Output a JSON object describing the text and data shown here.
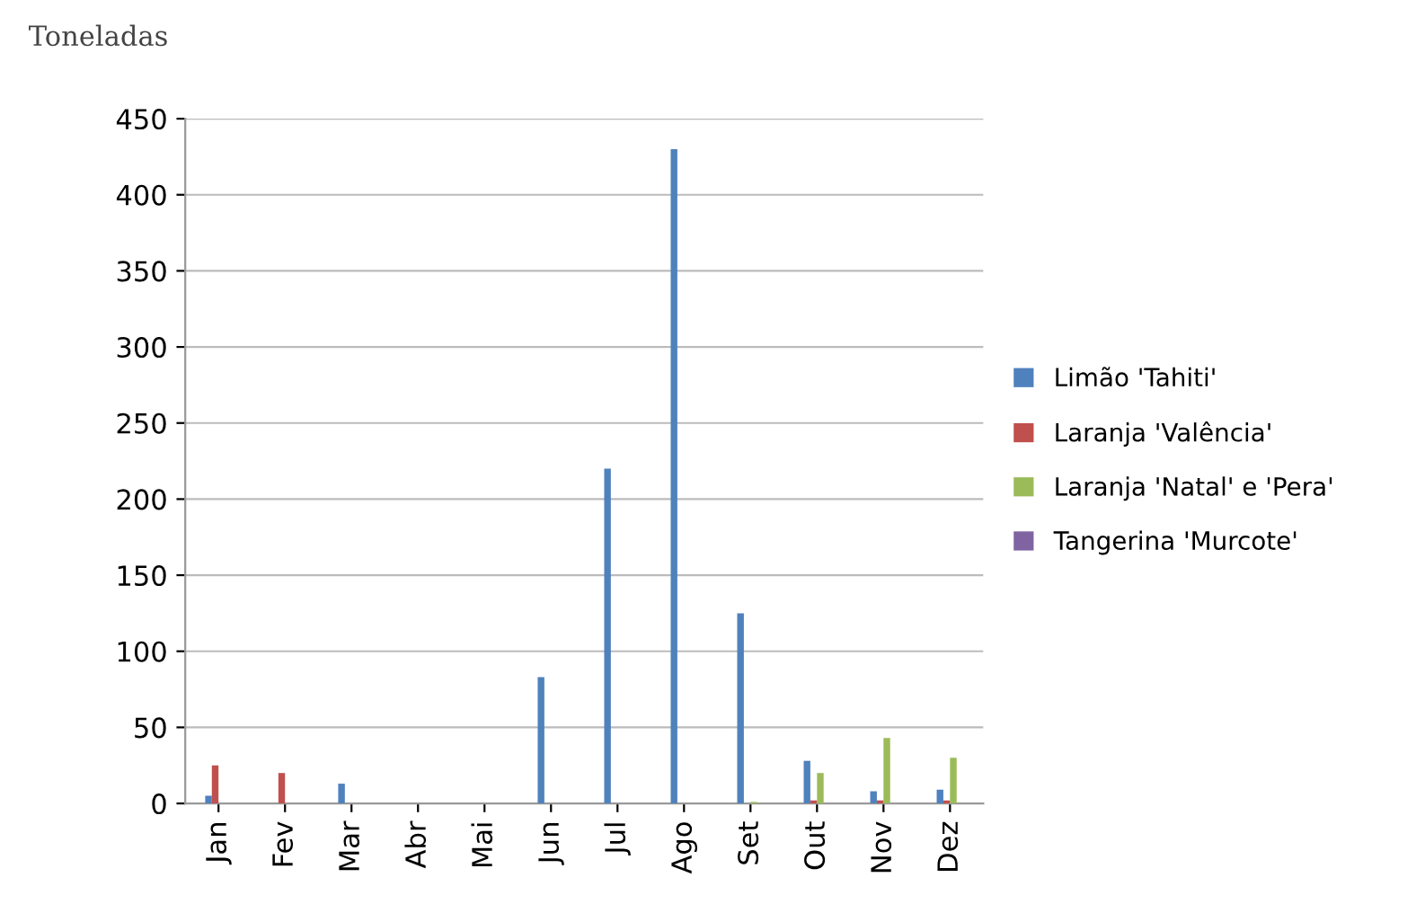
{
  "chart_data": {
    "type": "bar",
    "ylabel": "Toneladas",
    "categories": [
      "Jan",
      "Fev",
      "Mar",
      "Abr",
      "Mai",
      "Jun",
      "Jul",
      "Ago",
      "Set",
      "Out",
      "Nov",
      "Dez"
    ],
    "series": [
      {
        "name": "Limão 'Tahiti'",
        "color": "#4f81bd",
        "values": [
          5,
          0,
          13,
          0,
          0,
          83,
          220,
          430,
          125,
          28,
          8,
          9
        ]
      },
      {
        "name": "Laranja 'Valência'",
        "color": "#c0504d",
        "values": [
          25,
          20,
          0,
          0,
          0,
          0,
          0,
          0,
          0,
          2,
          2,
          2
        ]
      },
      {
        "name": "Laranja 'Natal' e 'Pera'",
        "color": "#9bbb59",
        "values": [
          0,
          0,
          0,
          0,
          0,
          0,
          0,
          0,
          1,
          20,
          43,
          30
        ]
      },
      {
        "name": "Tangerina 'Murcote'",
        "color": "#8064a2",
        "values": [
          0,
          0,
          0,
          0,
          0,
          0,
          0,
          0,
          0,
          0,
          0,
          0
        ]
      }
    ],
    "ylim": [
      0,
      450
    ],
    "yticks": [
      0,
      50,
      100,
      150,
      200,
      250,
      300,
      350,
      400,
      450
    ],
    "grid": "y",
    "legend": "right"
  }
}
